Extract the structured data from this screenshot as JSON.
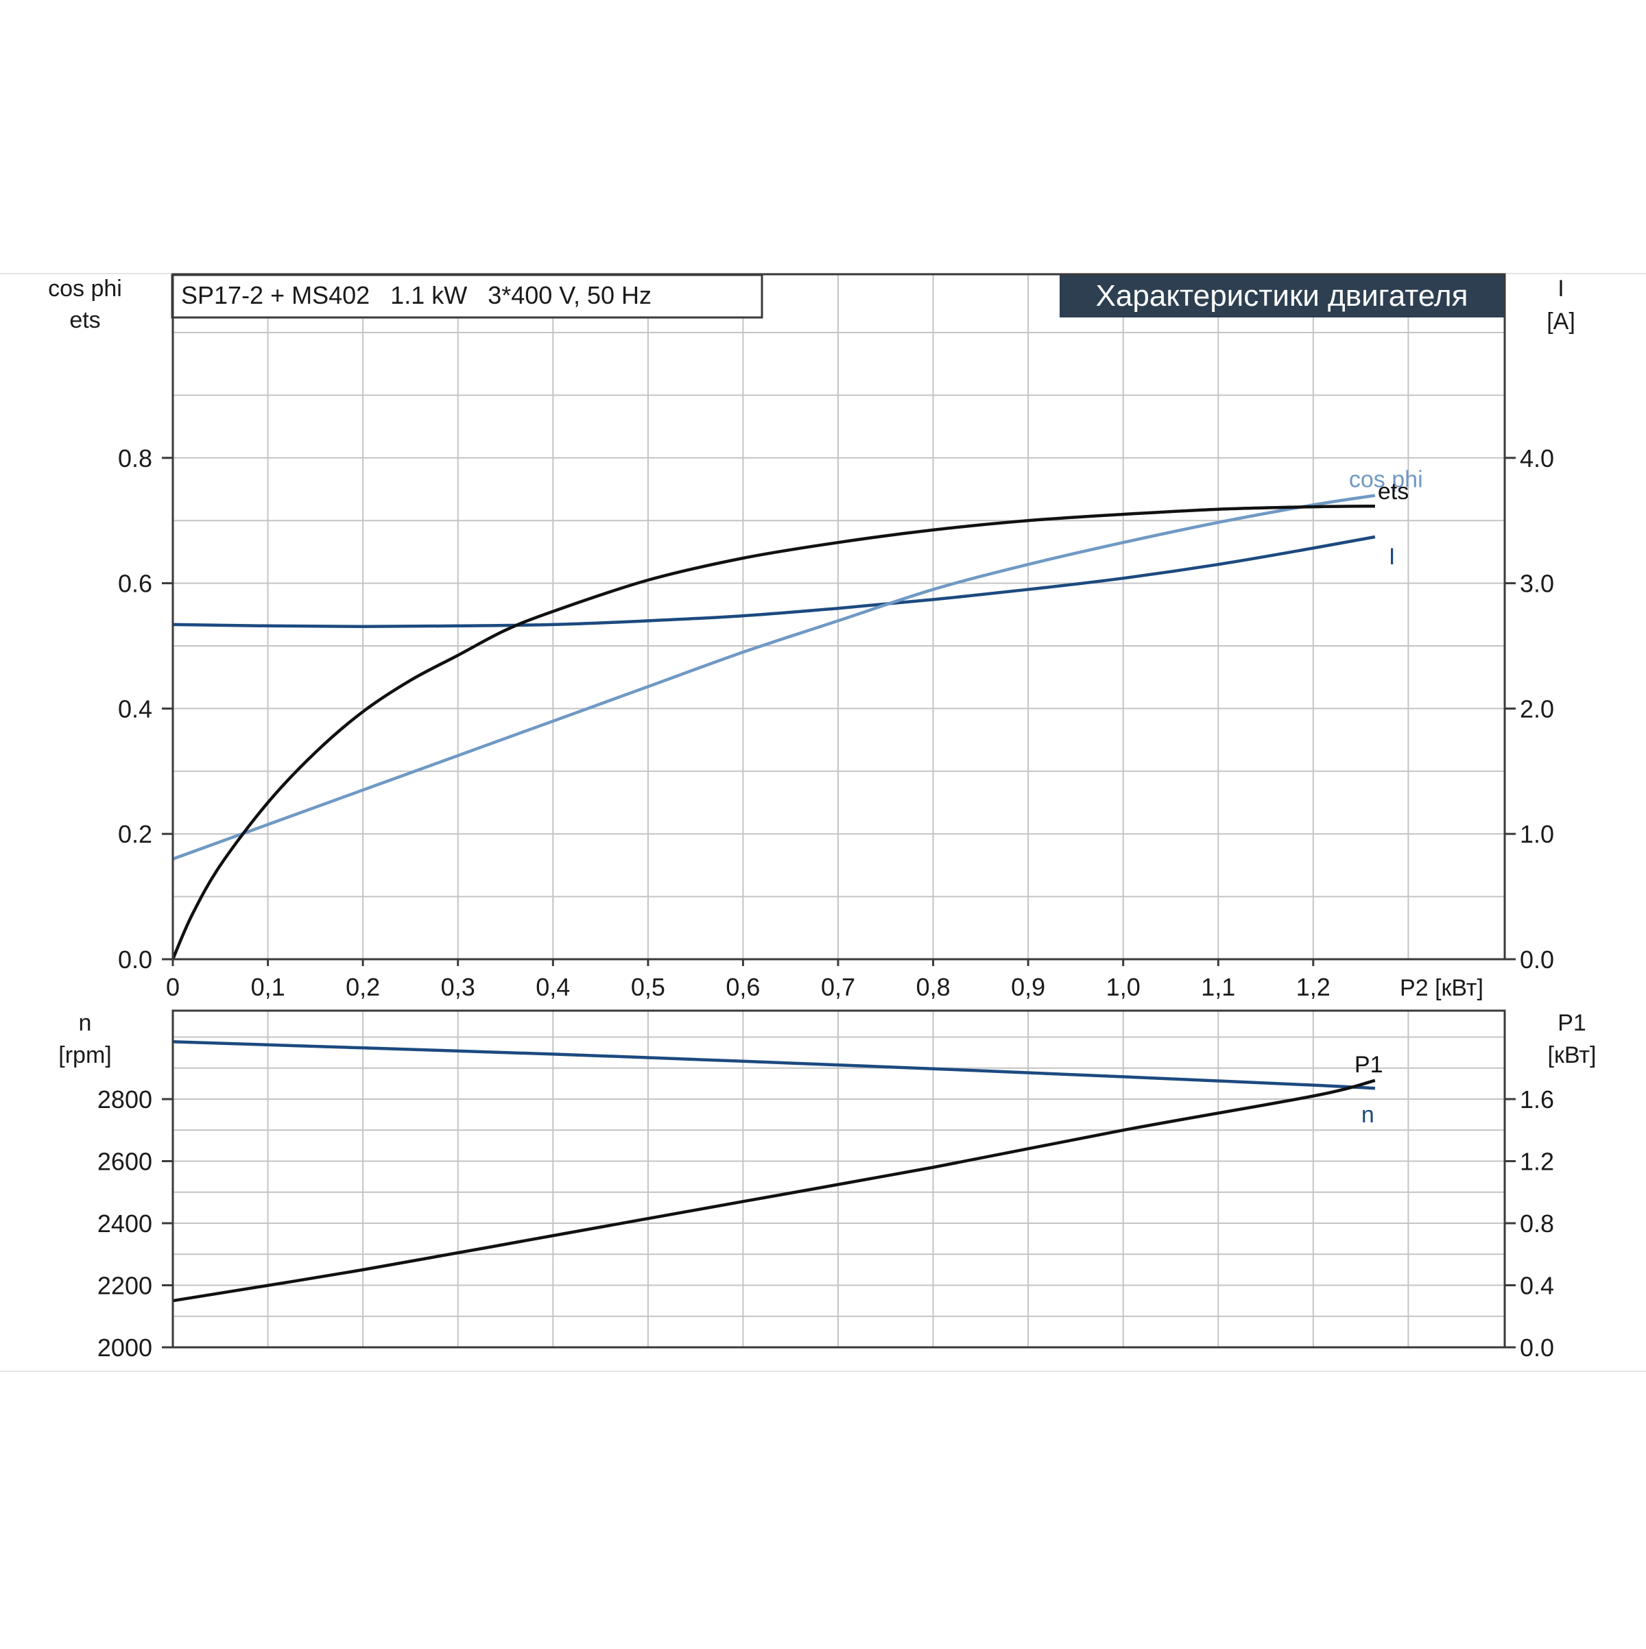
{
  "chart_data": [
    {
      "type": "line",
      "title": "SP17-2 + MS402   1.1 kW   3*400 V, 50 Hz",
      "badge": "Характеристики двигателя",
      "xlabel": "P2 [кВт]",
      "xlim": [
        0,
        1.4
      ],
      "x_ticks": [
        "0",
        "0,1",
        "0,2",
        "0,3",
        "0,4",
        "0,5",
        "0,6",
        "0,7",
        "0,8",
        "0,9",
        "1,0",
        "1,1",
        "1,2"
      ],
      "y_left_label_1": "cos phi",
      "y_left_label_2": "ets",
      "ylim_left": [
        0,
        1.0
      ],
      "y_left_ticks": [
        "0.0",
        "0.2",
        "0.4",
        "0.6",
        "0.8"
      ],
      "y_right_label_1": "I",
      "y_right_label_2": "[A]",
      "ylim_right": [
        0,
        5.0
      ],
      "y_right_ticks": [
        "0.0",
        "1.0",
        "2.0",
        "3.0",
        "4.0"
      ],
      "grid": true,
      "series": [
        {
          "name": "ets",
          "axis": "left",
          "color": "#111111",
          "x": [
            0,
            0.02,
            0.05,
            0.1,
            0.15,
            0.2,
            0.25,
            0.3,
            0.35,
            0.4,
            0.5,
            0.6,
            0.7,
            0.8,
            0.9,
            1.0,
            1.1,
            1.2,
            1.265
          ],
          "values": [
            0.0,
            0.07,
            0.15,
            0.25,
            0.33,
            0.395,
            0.445,
            0.485,
            0.525,
            0.555,
            0.605,
            0.64,
            0.665,
            0.685,
            0.7,
            0.71,
            0.718,
            0.722,
            0.723
          ]
        },
        {
          "name": "cos phi",
          "axis": "left",
          "color": "#7099c4",
          "x": [
            0,
            0.1,
            0.2,
            0.3,
            0.4,
            0.5,
            0.6,
            0.7,
            0.8,
            0.9,
            1.0,
            1.1,
            1.2,
            1.265
          ],
          "values": [
            0.16,
            0.215,
            0.27,
            0.325,
            0.38,
            0.435,
            0.49,
            0.54,
            0.59,
            0.63,
            0.665,
            0.697,
            0.725,
            0.74
          ]
        },
        {
          "name": "I",
          "axis": "right",
          "color": "#1c4a80",
          "x": [
            0,
            0.1,
            0.2,
            0.3,
            0.4,
            0.5,
            0.6,
            0.7,
            0.8,
            0.9,
            1.0,
            1.1,
            1.2,
            1.265
          ],
          "values": [
            2.67,
            2.66,
            2.655,
            2.66,
            2.67,
            2.7,
            2.74,
            2.8,
            2.87,
            2.95,
            3.04,
            3.15,
            3.28,
            3.37
          ]
        }
      ]
    },
    {
      "type": "line",
      "xlim": [
        0,
        1.4
      ],
      "y_left_label_1": "n",
      "y_left_label_2": "[rpm]",
      "ylim_left": [
        2000,
        3100
      ],
      "y_left_ticks": [
        "2000",
        "2200",
        "2400",
        "2600",
        "2800"
      ],
      "y_right_label_1": "P1",
      "y_right_label_2": "[кВт]",
      "ylim_right": [
        0,
        2.2
      ],
      "y_right_ticks": [
        "0.0",
        "0.4",
        "0.8",
        "1.2",
        "1.6"
      ],
      "grid": true,
      "series": [
        {
          "name": "n",
          "axis": "left",
          "color": "#1c4a80",
          "x": [
            0,
            0.2,
            0.4,
            0.6,
            0.8,
            1.0,
            1.2,
            1.265
          ],
          "values": [
            2985,
            2965,
            2945,
            2922,
            2898,
            2872,
            2845,
            2835
          ]
        },
        {
          "name": "P1",
          "axis": "right",
          "color": "#111111",
          "x": [
            0,
            0.2,
            0.4,
            0.6,
            0.8,
            1.0,
            1.2,
            1.265
          ],
          "values": [
            0.3,
            0.5,
            0.72,
            0.94,
            1.16,
            1.4,
            1.62,
            1.72
          ]
        }
      ]
    }
  ]
}
